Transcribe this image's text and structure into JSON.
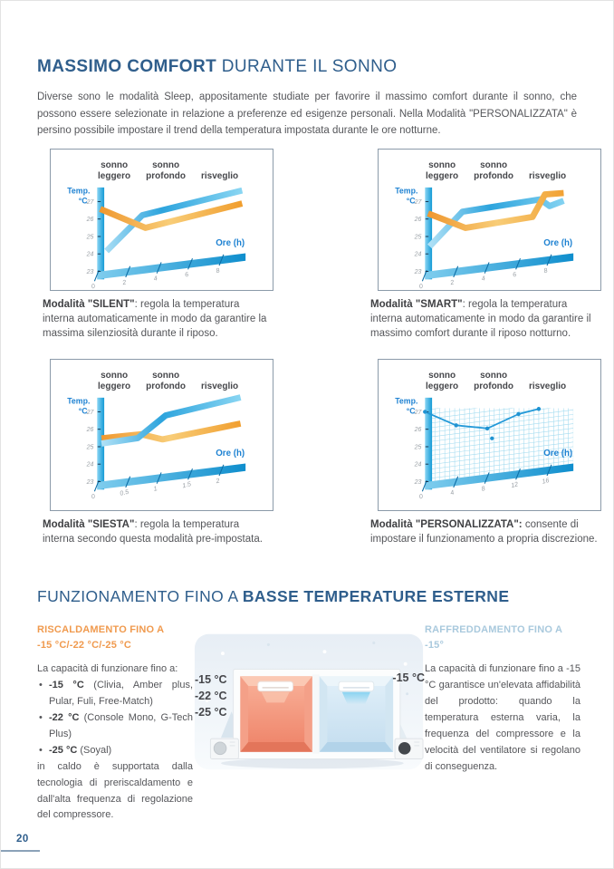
{
  "header": {
    "title_bold": "MASSIMO COMFORT",
    "title_rest": " DURANTE IL SONNO",
    "intro": "Diverse sono le modalità Sleep, appositamente studiate per favorire il massimo comfort durante il sonno, che possono essere selezionate in relazione a preferenze ed esigenze personali. Nella Modalità \"PERSONALIZZATA\" è persino possibile impostare il trend della temperatura impostata durante le ore notturne."
  },
  "chart_data": [
    {
      "type": "area",
      "mode": "SILENT",
      "phases": [
        "sonno\nleggero",
        "sonno\nprofondo",
        "risveglio"
      ],
      "y_label1": "Temp.",
      "y_label2": "°C",
      "x_label": "Ore (h)",
      "y_ticks": [
        "27",
        "26",
        "25",
        "24",
        "23"
      ],
      "x_ticks": [
        "0",
        "2",
        "4",
        "6",
        "8"
      ],
      "ylim": [
        23,
        27
      ],
      "xlim": [
        0,
        8
      ],
      "grid": false,
      "series": [
        {
          "name": "blue-curve",
          "palette": "blue",
          "points": [
            [
              0.6,
              24.1
            ],
            [
              2.9,
              25.9
            ],
            [
              9.3,
              26.6
            ]
          ]
        },
        {
          "name": "orange-curve",
          "palette": "orange",
          "points": [
            [
              0.2,
              26.55
            ],
            [
              3.1,
              25.15
            ],
            [
              9.3,
              25.85
            ]
          ]
        }
      ],
      "caption_bold": "Modalità \"SILENT\"",
      "caption_rest": ": regola la temperatura interna automaticamente in modo da garantire la massima silenziosità durante il riposo."
    },
    {
      "type": "area",
      "mode": "SMART",
      "phases": [
        "sonno\nleggero",
        "sonno\nprofondo",
        "risveglio"
      ],
      "y_label1": "Temp.",
      "y_label2": "°C",
      "x_label": "Ore (h)",
      "y_ticks": [
        "27",
        "26",
        "25",
        "24",
        "23"
      ],
      "x_ticks": [
        "0",
        "2",
        "4",
        "6",
        "8"
      ],
      "ylim": [
        23,
        27
      ],
      "xlim": [
        0,
        8
      ],
      "grid": false,
      "series": [
        {
          "name": "blue-curve",
          "palette": "blue",
          "points": [
            [
              0.3,
              24.4
            ],
            [
              2.4,
              26.15
            ],
            [
              7.4,
              26.3
            ],
            [
              8.0,
              25.85
            ],
            [
              8.9,
              26.05
            ]
          ]
        },
        {
          "name": "orange-curve",
          "palette": "orange",
          "points": [
            [
              0.2,
              26.3
            ],
            [
              2.6,
              25.2
            ],
            [
              6.9,
              25.35
            ],
            [
              7.7,
              26.55
            ],
            [
              8.9,
              26.5
            ]
          ]
        }
      ],
      "caption_bold": "Modalità \"SMART\"",
      "caption_rest": ": regola la temperatura interna automaticamente in modo da garantire il massimo comfort durante il riposo notturno."
    },
    {
      "type": "area",
      "mode": "SIESTA",
      "phases": [
        "sonno\nleggero",
        "sonno\nprofondo",
        "risveglio"
      ],
      "y_label1": "Temp.",
      "y_label2": "°C",
      "x_label": "Ore (h)",
      "y_ticks": [
        "27",
        "26",
        "25",
        "24",
        "23"
      ],
      "x_ticks": [
        "0",
        "0.5",
        "1",
        "1.5",
        "2"
      ],
      "ylim": [
        23,
        27
      ],
      "xlim": [
        0,
        2
      ],
      "grid": false,
      "series": [
        {
          "name": "orange-curve",
          "palette": "orange",
          "points": [
            [
              0.07,
              25.45
            ],
            [
              0.7,
              25.4
            ],
            [
              1.05,
              24.95
            ],
            [
              2.3,
              25.3
            ]
          ]
        },
        {
          "name": "blue-curve",
          "palette": "blue",
          "points": [
            [
              0.07,
              25.15
            ],
            [
              0.65,
              25.2
            ],
            [
              1.1,
              26.3
            ],
            [
              2.3,
              26.8
            ]
          ]
        }
      ],
      "caption_bold": "Modalità \"SIESTA\"",
      "caption_rest": ": regola la temperatura interna secondo questa modalità pre-impostata."
    },
    {
      "type": "line",
      "mode": "PERSONALIZZATA",
      "phases": [
        "sonno\nleggero",
        "sonno\nprofondo",
        "risveglio"
      ],
      "y_label1": "Temp.",
      "y_label2": "°C",
      "x_label": "Ore (h)",
      "y_ticks": [
        "27",
        "26",
        "25",
        "24",
        "23"
      ],
      "x_ticks": [
        "0",
        "4",
        "8",
        "12",
        "16"
      ],
      "ylim": [
        23,
        27
      ],
      "xlim": [
        0,
        16
      ],
      "grid": true,
      "series": [
        {
          "name": "blue-curve",
          "palette": "blue",
          "points": [
            [
              0,
              27.0
            ],
            [
              4,
              26.0
            ],
            [
              8,
              25.6
            ],
            [
              12,
              26.2
            ],
            [
              14.6,
              26.35
            ]
          ]
        }
      ],
      "float_point": [
        8.6,
        25.0
      ],
      "caption_bold": "Modalità \"PERSONALIZZATA\":",
      "caption_rest": " consente di impostare il funzionamento a propria discrezione."
    }
  ],
  "section2": {
    "title_regular": "FUNZIONAMENTO FINO A ",
    "title_bold": "BASSE TEMPERATURE ESTERNE"
  },
  "heating": {
    "heading_line1": "RISCALDAMENTO FINO A",
    "heading_line2": "-15 °C/-22 °C/-25 °C",
    "intro": "La capacità di funzionare fino a:",
    "bullet_char": "•",
    "bullets": [
      {
        "bold": "-15 °C",
        "rest": " (Clivia, Amber plus, Pular, Fuli, Free-Match)"
      },
      {
        "bold": "-22 °C",
        "rest": " (Console Mono, G-Tech Plus)"
      },
      {
        "bold": "-25 °C",
        "rest": " (Soyal)"
      }
    ],
    "outro": "in caldo è supportata dalla tecnologia di preriscaldamento e dall'alta frequenza di regolazione del compressore."
  },
  "cooling": {
    "heading_line1": "RAFFREDDAMENTO FINO A",
    "heading_line2": "-15°",
    "body": "La capacità di funzionare fino a -15 °C garantisce un'elevata affidabilità del prodotto: quando la temperatura esterna varia, la frequenza del compressore e la velocità del ventilatore si regolano di conseguenza."
  },
  "illustration": {
    "left_labels": [
      "-15 °C",
      "-22 °C",
      "-25 °C"
    ],
    "right_label": "-15 °C"
  },
  "footer": {
    "page_number": "20"
  },
  "colors": {
    "heading_blue": "#2f5e8c",
    "body_gray": "#55565a",
    "axis_blue": "#1e82d2",
    "ribbon_blue": "#2da4dd",
    "ribbon_orange": "#f0952e",
    "heating_orange": "#f09a4e",
    "cooling_blue": "#a9c9dd",
    "box_border": "#8b9aa9"
  }
}
